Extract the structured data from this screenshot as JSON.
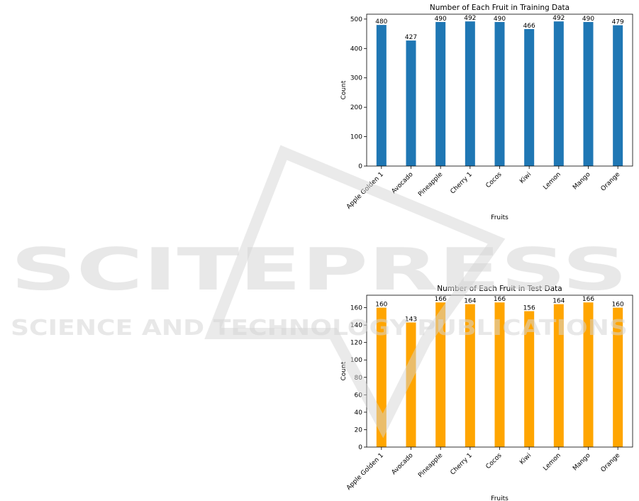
{
  "chart_data": [
    {
      "type": "bar",
      "title": "Number of Each Fruit in Training Data",
      "x_label": "Fruits",
      "y_label": "Count",
      "categories": [
        "Apple Golden 1",
        "Avocado",
        "Pineapple",
        "Cherry 1",
        "Cocos",
        "Kiwi",
        "Lemon",
        "Mango",
        "Orange"
      ],
      "values": [
        480,
        427,
        490,
        492,
        490,
        466,
        492,
        490,
        479
      ],
      "color": "#1f77b4",
      "ylim": [
        0,
        516.6
      ],
      "yticks": [
        0,
        100,
        200,
        300,
        400,
        500
      ],
      "grid": false
    },
    {
      "type": "bar",
      "title": "Number of Each Fruit in Test Data",
      "x_label": "Fruits",
      "y_label": "Count",
      "categories": [
        "Apple Golden 1",
        "Avocado",
        "Pineapple",
        "Cherry 1",
        "Cocos",
        "Kiwi",
        "Lemon",
        "Mango",
        "Orange"
      ],
      "values": [
        160,
        143,
        166,
        164,
        166,
        156,
        164,
        166,
        160
      ],
      "color": "#ffa500",
      "ylim": [
        0,
        174.3
      ],
      "yticks": [
        0,
        20,
        40,
        60,
        80,
        100,
        120,
        140,
        160
      ],
      "grid": false
    }
  ],
  "watermark": {
    "name": "SCITEPRESS",
    "tagline": "SCIENCE AND TECHNOLOGY PUBLICATIONS"
  }
}
